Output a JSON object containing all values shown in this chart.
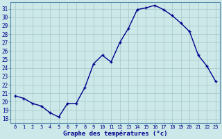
{
  "x": [
    0,
    1,
    2,
    3,
    4,
    5,
    6,
    7,
    8,
    9,
    10,
    11,
    12,
    13,
    14,
    15,
    16,
    17,
    18,
    19,
    20,
    21,
    22,
    23
  ],
  "y": [
    20.7,
    20.4,
    19.8,
    19.5,
    18.7,
    18.2,
    19.8,
    19.8,
    21.7,
    24.5,
    25.5,
    24.7,
    27.0,
    28.7,
    30.9,
    31.1,
    31.4,
    30.9,
    30.2,
    29.3,
    28.3,
    25.5,
    24.2,
    22.4
  ],
  "line_color": "#00008B",
  "marker": "+",
  "marker_size": 3.5,
  "marker_lw": 1.0,
  "bg_color": "#cce8e8",
  "grid_color": "#aacccc",
  "xlabel": "Graphe des températures (°c)",
  "xlabel_color": "#00008B",
  "ylabel_ticks": [
    18,
    19,
    20,
    21,
    22,
    23,
    24,
    25,
    26,
    27,
    28,
    29,
    30,
    31
  ],
  "xtick_labels": [
    "0",
    "1",
    "2",
    "3",
    "4",
    "5",
    "6",
    "7",
    "8",
    "9",
    "10",
    "11",
    "12",
    "13",
    "14",
    "15",
    "16",
    "17",
    "18",
    "19",
    "20",
    "21",
    "22",
    "23"
  ],
  "ylim": [
    17.5,
    31.8
  ],
  "xlim": [
    -0.5,
    23.5
  ],
  "tick_color": "#00008B",
  "spine_color": "#5588aa",
  "ytick_fontsize": 5.5,
  "xtick_fontsize": 5.0,
  "xlabel_fontsize": 6.5,
  "linewidth": 1.0
}
